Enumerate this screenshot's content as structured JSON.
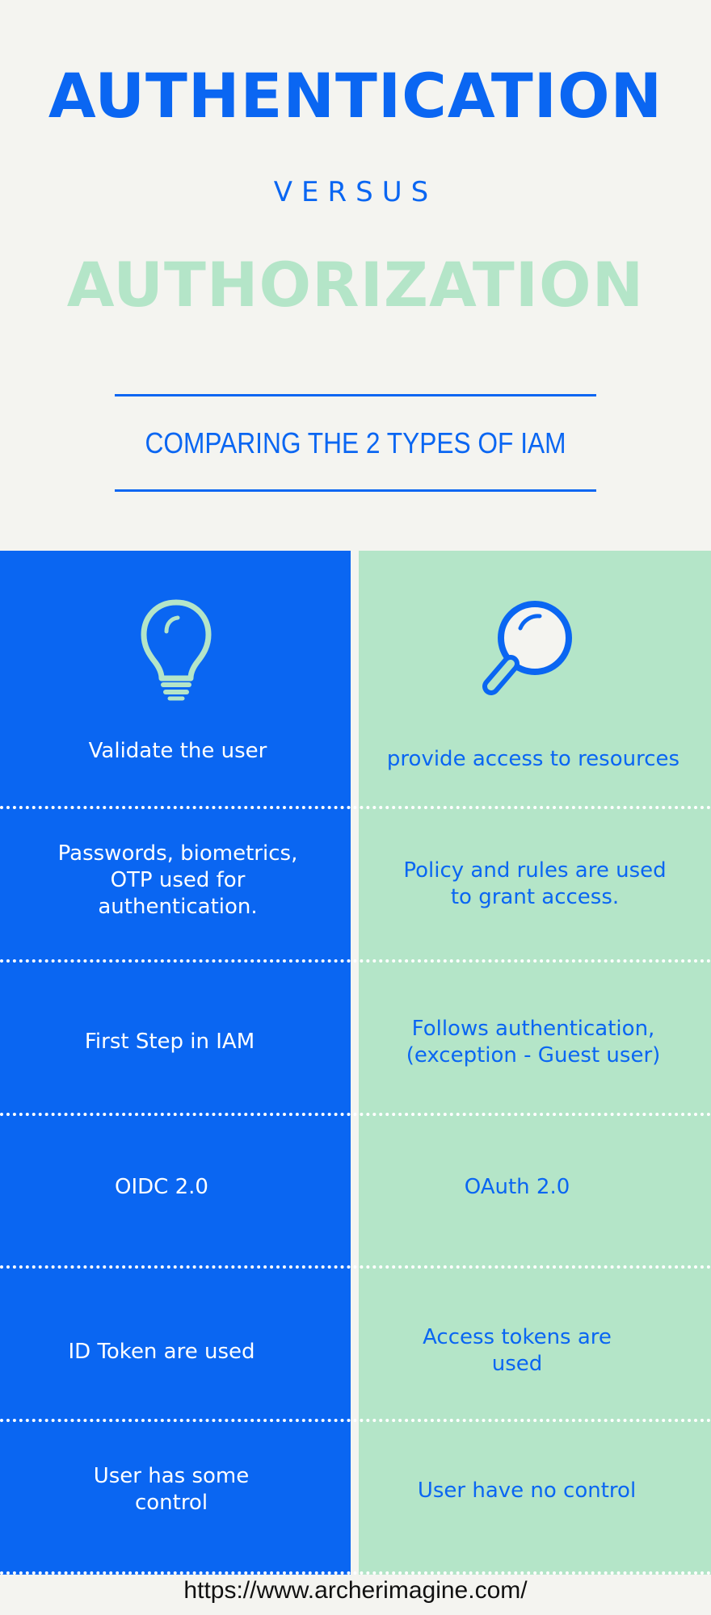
{
  "header": {
    "title_primary": "AUTHENTICATION",
    "versus": "VERSUS",
    "title_secondary": "AUTHORIZATION",
    "subtitle": "COMPARING THE 2 TYPES OF IAM"
  },
  "columns": {
    "left_icon": "lightbulb-icon",
    "right_icon": "magnifying-glass-icon"
  },
  "rows": [
    {
      "left": "Validate the user",
      "right": "provide access to resources"
    },
    {
      "left": "Passwords, biometrics, OTP used for authentication.",
      "right": "Policy and rules are used to grant access."
    },
    {
      "left": "First Step in IAM",
      "right": "Follows authentication, (exception - Guest user)"
    },
    {
      "left": "OIDC 2.0",
      "right": "OAuth 2.0"
    },
    {
      "left": "ID Token are used",
      "right": "Access tokens are used"
    },
    {
      "left": "User has some control",
      "right": "User have no control"
    }
  ],
  "footer": {
    "url": "https://www.archerimagine.com/"
  },
  "colors": {
    "blue": "#0a66f2",
    "mint": "#b4e5c8",
    "background": "#f4f4f0",
    "white": "#ffffff"
  }
}
